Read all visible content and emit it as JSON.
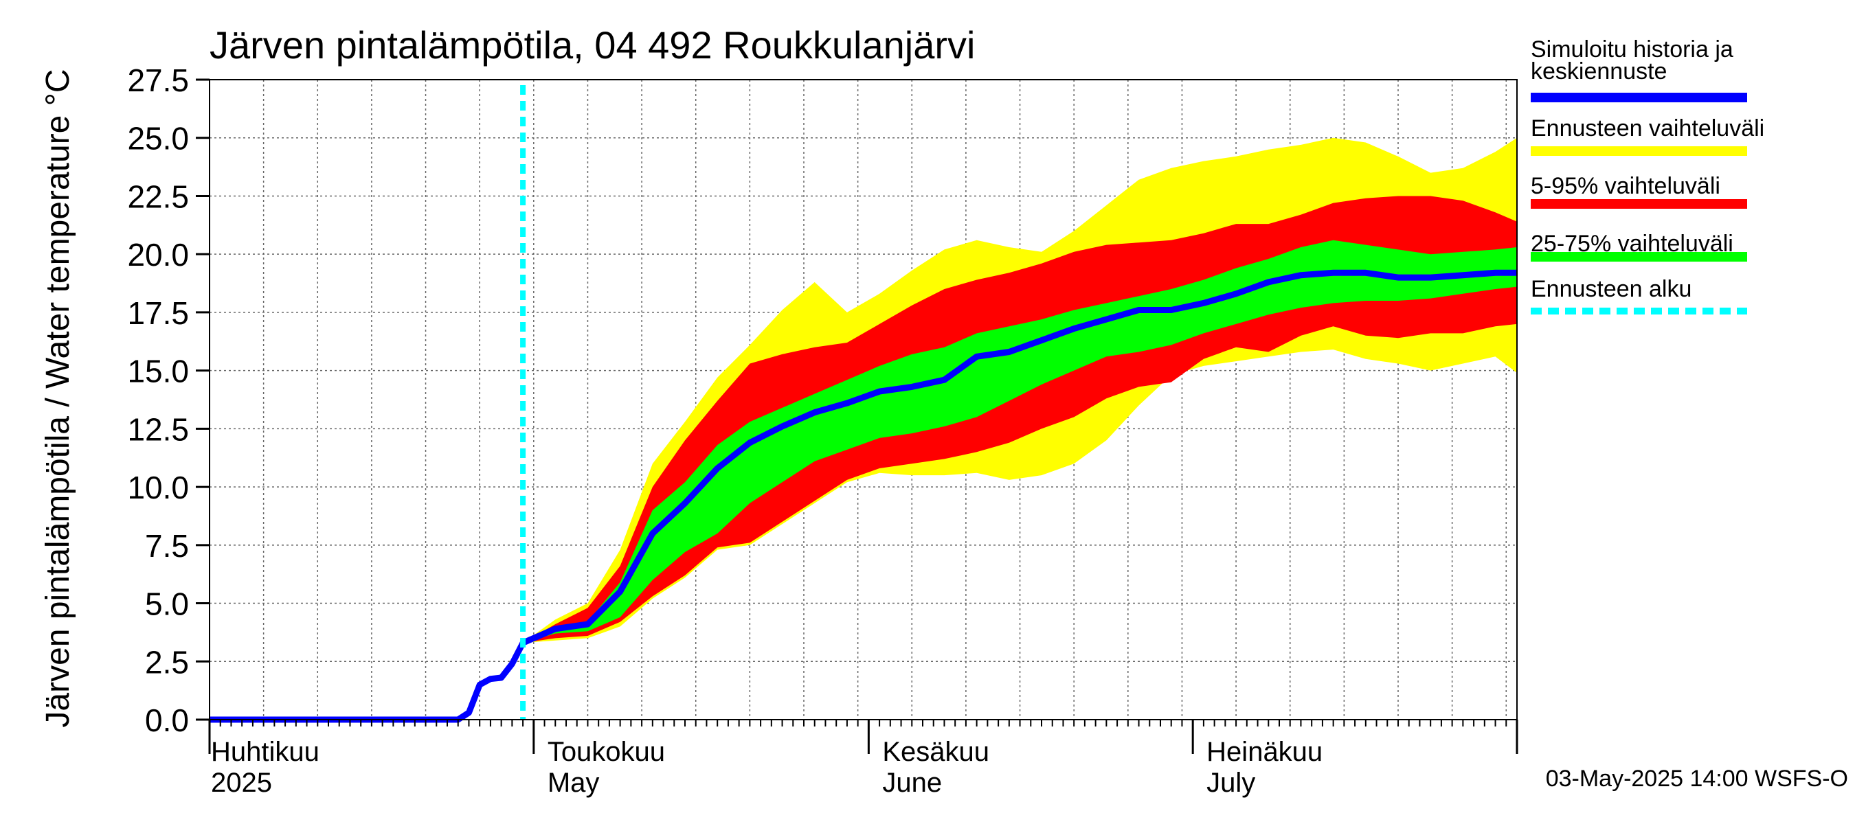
{
  "chart_data": {
    "type": "area",
    "title": "Järven pintalämpötila, 04 492 Roukkulanjärvi",
    "ylabel": "Järven pintalämpötila / Water temperature °C",
    "ylim": [
      0,
      27.5
    ],
    "yticks": [
      "0.0",
      "2.5",
      "5.0",
      "7.5",
      "10.0",
      "12.5",
      "15.0",
      "17.5",
      "20.0",
      "22.5",
      "25.0",
      "27.5"
    ],
    "xlim": [
      "2025-04-01",
      "2025-07-31"
    ],
    "months": [
      {
        "date": "2025-04-01",
        "fi": "Huhtikuu",
        "en": "2025"
      },
      {
        "date": "2025-05-01",
        "fi": "Toukokuu",
        "en": "May"
      },
      {
        "date": "2025-06-01",
        "fi": "Kesäkuu",
        "en": "June"
      },
      {
        "date": "2025-07-01",
        "fi": "Heinäkuu",
        "en": "July"
      }
    ],
    "forecast_start": "2025-04-30",
    "grid": true,
    "legend_position": "right",
    "legend": [
      {
        "label": "Simuloitu historia ja keskiennuste",
        "color": "#0000ff",
        "style": "line"
      },
      {
        "label": "Ennusteen vaihteluväli",
        "color": "#ffff00",
        "style": "band"
      },
      {
        "label": "5-95% vaihteluväli",
        "color": "#ff0000",
        "style": "band"
      },
      {
        "label": "25-75% vaihteluväli",
        "color": "#00ff00",
        "style": "band"
      },
      {
        "label": "Ennusteen alku",
        "color": "#00ffff",
        "style": "dashed"
      }
    ],
    "history": {
      "x": [
        "2025-04-01",
        "2025-04-24",
        "2025-04-25",
        "2025-04-26",
        "2025-04-27",
        "2025-04-28",
        "2025-04-29",
        "2025-04-30"
      ],
      "y": [
        0.0,
        0.0,
        0.3,
        1.5,
        1.75,
        1.8,
        2.4,
        3.3
      ]
    },
    "forecast": {
      "x": [
        "2025-04-30",
        "2025-05-03",
        "2025-05-06",
        "2025-05-09",
        "2025-05-12",
        "2025-05-15",
        "2025-05-18",
        "2025-05-21",
        "2025-05-24",
        "2025-05-27",
        "2025-05-30",
        "2025-06-02",
        "2025-06-05",
        "2025-06-08",
        "2025-06-11",
        "2025-06-14",
        "2025-06-17",
        "2025-06-20",
        "2025-06-23",
        "2025-06-26",
        "2025-06-29",
        "2025-07-02",
        "2025-07-05",
        "2025-07-08",
        "2025-07-11",
        "2025-07-14",
        "2025-07-17",
        "2025-07-20",
        "2025-07-23",
        "2025-07-26",
        "2025-07-29",
        "2025-07-31"
      ],
      "median": [
        3.3,
        3.9,
        4.1,
        5.5,
        8.0,
        9.3,
        10.8,
        11.9,
        12.6,
        13.2,
        13.6,
        14.1,
        14.3,
        14.6,
        15.6,
        15.8,
        16.3,
        16.8,
        17.2,
        17.6,
        17.6,
        17.9,
        18.3,
        18.8,
        19.1,
        19.2,
        19.2,
        19.0,
        19.0,
        19.1,
        19.2,
        19.2
      ],
      "p25": [
        3.3,
        3.7,
        3.8,
        4.4,
        6.0,
        7.2,
        8.0,
        9.3,
        10.2,
        11.1,
        11.6,
        12.1,
        12.3,
        12.6,
        13.0,
        13.7,
        14.4,
        15.0,
        15.6,
        15.8,
        16.1,
        16.6,
        17.0,
        17.4,
        17.7,
        17.9,
        18.0,
        18.0,
        18.1,
        18.3,
        18.5,
        18.6
      ],
      "p75": [
        3.3,
        3.9,
        4.2,
        5.9,
        9.0,
        10.2,
        11.8,
        12.8,
        13.4,
        14.0,
        14.6,
        15.2,
        15.7,
        16.0,
        16.6,
        16.9,
        17.2,
        17.6,
        17.9,
        18.2,
        18.5,
        18.9,
        19.4,
        19.8,
        20.3,
        20.6,
        20.4,
        20.2,
        20.0,
        20.1,
        20.2,
        20.3
      ],
      "p05": [
        3.3,
        3.5,
        3.6,
        4.2,
        5.3,
        6.2,
        7.4,
        7.6,
        8.5,
        9.4,
        10.3,
        10.8,
        11.0,
        11.2,
        11.5,
        11.9,
        12.5,
        13.0,
        13.8,
        14.3,
        14.5,
        15.5,
        16.0,
        15.8,
        16.5,
        16.9,
        16.5,
        16.4,
        16.6,
        16.6,
        16.9,
        17.0
      ],
      "p95": [
        3.3,
        4.1,
        4.8,
        6.6,
        10.0,
        12.0,
        13.7,
        15.3,
        15.7,
        16.0,
        16.2,
        17.0,
        17.8,
        18.5,
        18.9,
        19.2,
        19.6,
        20.1,
        20.4,
        20.5,
        20.6,
        20.9,
        21.3,
        21.3,
        21.7,
        22.2,
        22.4,
        22.5,
        22.5,
        22.3,
        21.8,
        21.4
      ],
      "min": [
        3.3,
        3.4,
        3.5,
        4.0,
        5.2,
        6.1,
        7.3,
        7.5,
        8.4,
        9.3,
        10.2,
        10.6,
        10.5,
        10.5,
        10.6,
        10.3,
        10.5,
        11.0,
        12.0,
        13.5,
        14.8,
        15.2,
        15.4,
        15.6,
        15.8,
        15.9,
        15.5,
        15.3,
        15.0,
        15.3,
        15.6,
        14.9
      ],
      "max": [
        3.3,
        4.3,
        5.0,
        7.3,
        11.0,
        12.8,
        14.7,
        16.1,
        17.6,
        18.8,
        17.5,
        18.3,
        19.3,
        20.2,
        20.6,
        20.3,
        20.1,
        21.0,
        22.1,
        23.2,
        23.7,
        24.0,
        24.2,
        24.5,
        24.7,
        25.0,
        24.8,
        24.2,
        23.5,
        23.7,
        24.4,
        25.0
      ]
    }
  },
  "footer": {
    "timestamp": "03-May-2025 14:00 WSFS-O"
  }
}
